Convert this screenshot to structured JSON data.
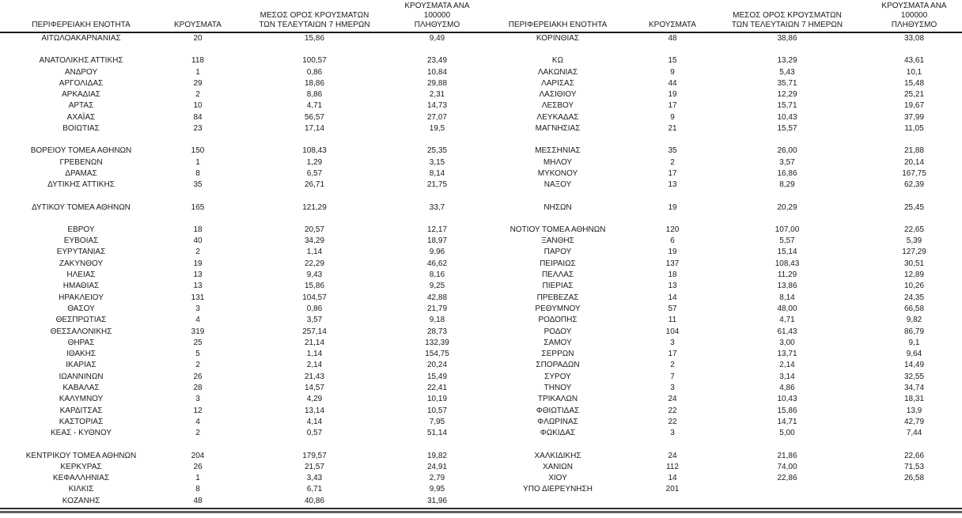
{
  "table": {
    "columns": [
      "ΠΕΡΙΦΕΡΕΙΑΚΗ ΕΝΟΤΗΤΑ",
      "ΚΡΟΥΣΜΑΤΑ",
      "ΜΕΣΟΣ ΟΡΟΣ ΚΡΟΥΣΜΑΤΩΝ\nΤΩΝ ΤΕΛΕΥΤΑΙΩΝ 7 ΗΜΕΡΩΝ",
      "ΚΡΟΥΣΜΑΤΑ ΑΝΑ 100000\nΠΛΗΘΥΣΜΟ",
      "ΠΕΡΙΦΕΡΕΙΑΚΗ ΕΝΟΤΗΤΑ",
      "ΚΡΟΥΣΜΑΤΑ",
      "ΜΕΣΟΣ ΟΡΟΣ ΚΡΟΥΣΜΑΤΩΝ\nΤΩΝ ΤΕΛΕΥΤΑΙΩΝ 7 ΗΜΕΡΩΝ",
      "ΚΡΟΥΣΜΑΤΑ ΑΝΑ 100000\nΠΛΗΘΥΣΜΟ"
    ],
    "rows": [
      [
        "ΑΙΤΩΛΟΑΚΑΡΝΑΝΙΑΣ",
        "20",
        "15,86",
        "9,49",
        "ΚΟΡΙΝΘΙΑΣ",
        "48",
        "38,86",
        "33,08"
      ],
      [
        "",
        "",
        "",
        "",
        "",
        "",
        "",
        ""
      ],
      [
        "ΑΝΑΤΟΛΙΚΗΣ ΑΤΤΙΚΗΣ",
        "118",
        "100,57",
        "23,49",
        "ΚΩ",
        "15",
        "13,29",
        "43,61"
      ],
      [
        "ΑΝΔΡΟΥ",
        "1",
        "0,86",
        "10,84",
        "ΛΑΚΩΝΙΑΣ",
        "9",
        "5,43",
        "10,1"
      ],
      [
        "ΑΡΓΟΛΙΔΑΣ",
        "29",
        "18,86",
        "29,88",
        "ΛΑΡΙΣΑΣ",
        "44",
        "35,71",
        "15,48"
      ],
      [
        "ΑΡΚΑΔΙΑΣ",
        "2",
        "8,86",
        "2,31",
        "ΛΑΣΙΘΙΟΥ",
        "19",
        "12,29",
        "25,21"
      ],
      [
        "ΑΡΤΑΣ",
        "10",
        "4,71",
        "14,73",
        "ΛΕΣΒΟΥ",
        "17",
        "15,71",
        "19,67"
      ],
      [
        "ΑΧΑΪΑΣ",
        "84",
        "56,57",
        "27,07",
        "ΛΕΥΚΑΔΑΣ",
        "9",
        "10,43",
        "37,99"
      ],
      [
        "ΒΟΙΩΤΙΑΣ",
        "23",
        "17,14",
        "19,5",
        "ΜΑΓΝΗΣΙΑΣ",
        "21",
        "15,57",
        "11,05"
      ],
      [
        "",
        "",
        "",
        "",
        "",
        "",
        "",
        ""
      ],
      [
        "ΒΟΡΕΙΟΥ ΤΟΜΕΑ ΑΘΗΝΩΝ",
        "150",
        "108,43",
        "25,35",
        "ΜΕΣΣΗΝΙΑΣ",
        "35",
        "26,00",
        "21,88"
      ],
      [
        "ΓΡΕΒΕΝΩΝ",
        "1",
        "1,29",
        "3,15",
        "ΜΗΛΟΥ",
        "2",
        "3,57",
        "20,14"
      ],
      [
        "ΔΡΑΜΑΣ",
        "8",
        "6,57",
        "8,14",
        "ΜΥΚΟΝΟΥ",
        "17",
        "16,86",
        "167,75"
      ],
      [
        "ΔΥΤΙΚΗΣ ΑΤΤΙΚΗΣ",
        "35",
        "26,71",
        "21,75",
        "ΝΑΞΟΥ",
        "13",
        "8,29",
        "62,39"
      ],
      [
        "",
        "",
        "",
        "",
        "",
        "",
        "",
        ""
      ],
      [
        "ΔΥΤΙΚΟΥ ΤΟΜΕΑ ΑΘΗΝΩΝ",
        "165",
        "121,29",
        "33,7",
        "ΝΗΣΩΝ",
        "19",
        "20,29",
        "25,45"
      ],
      [
        "",
        "",
        "",
        "",
        "",
        "",
        "",
        ""
      ],
      [
        "ΕΒΡΟΥ",
        "18",
        "20,57",
        "12,17",
        "ΝΟΤΙΟΥ ΤΟΜΕΑ ΑΘΗΝΩΝ",
        "120",
        "107,00",
        "22,65"
      ],
      [
        "ΕΥΒΟΙΑΣ",
        "40",
        "34,29",
        "18,97",
        "ΞΑΝΘΗΣ",
        "6",
        "5,57",
        "5,39"
      ],
      [
        "ΕΥΡΥΤΑΝΙΑΣ",
        "2",
        "1,14",
        "9,96",
        "ΠΑΡΟΥ",
        "19",
        "15,14",
        "127,29"
      ],
      [
        "ΖΑΚΥΝΘΟΥ",
        "19",
        "22,29",
        "46,62",
        "ΠΕΙΡΑΙΩΣ",
        "137",
        "108,43",
        "30,51"
      ],
      [
        "ΗΛΕΙΑΣ",
        "13",
        "9,43",
        "8,16",
        "ΠΕΛΛΑΣ",
        "18",
        "11,29",
        "12,89"
      ],
      [
        "ΗΜΑΘΙΑΣ",
        "13",
        "15,86",
        "9,25",
        "ΠΙΕΡΙΑΣ",
        "13",
        "13,86",
        "10,26"
      ],
      [
        "ΗΡΑΚΛΕΙΟΥ",
        "131",
        "104,57",
        "42,88",
        "ΠΡΕΒΕΖΑΣ",
        "14",
        "8,14",
        "24,35"
      ],
      [
        "ΘΑΣΟΥ",
        "3",
        "0,86",
        "21,79",
        "ΡΕΘΥΜΝΟΥ",
        "57",
        "48,00",
        "66,58"
      ],
      [
        "ΘΕΣΠΡΩΤΙΑΣ",
        "4",
        "3,57",
        "9,18",
        "ΡΟΔΟΠΗΣ",
        "11",
        "4,71",
        "9,82"
      ],
      [
        "ΘΕΣΣΑΛΟΝΙΚΗΣ",
        "319",
        "257,14",
        "28,73",
        "ΡΟΔΟΥ",
        "104",
        "61,43",
        "86,79"
      ],
      [
        "ΘΗΡΑΣ",
        "25",
        "21,14",
        "132,39",
        "ΣΑΜΟΥ",
        "3",
        "3,00",
        "9,1"
      ],
      [
        "ΙΘΑΚΗΣ",
        "5",
        "1,14",
        "154,75",
        "ΣΕΡΡΩΝ",
        "17",
        "13,71",
        "9,64"
      ],
      [
        "ΙΚΑΡΙΑΣ",
        "2",
        "2,14",
        "20,24",
        "ΣΠΟΡΑΔΩΝ",
        "2",
        "2,14",
        "14,49"
      ],
      [
        "ΙΩΑΝΝΙΝΩΝ",
        "26",
        "21,43",
        "15,49",
        "ΣΥΡΟΥ",
        "7",
        "3,14",
        "32,55"
      ],
      [
        "ΚΑΒΑΛΑΣ",
        "28",
        "14,57",
        "22,41",
        "ΤΗΝΟΥ",
        "3",
        "4,86",
        "34,74"
      ],
      [
        "ΚΑΛΥΜΝΟΥ",
        "3",
        "4,29",
        "10,19",
        "ΤΡΙΚΑΛΩΝ",
        "24",
        "10,43",
        "18,31"
      ],
      [
        "ΚΑΡΔΙΤΣΑΣ",
        "12",
        "13,14",
        "10,57",
        "ΦΘΙΩΤΙΔΑΣ",
        "22",
        "15,86",
        "13,9"
      ],
      [
        "ΚΑΣΤΟΡΙΑΣ",
        "4",
        "4,14",
        "7,95",
        "ΦΛΩΡΙΝΑΣ",
        "22",
        "14,71",
        "42,79"
      ],
      [
        "ΚΕΑΣ - ΚΥΘΝΟΥ",
        "2",
        "0,57",
        "51,14",
        "ΦΩΚΙΔΑΣ",
        "3",
        "5,00",
        "7,44"
      ],
      [
        "",
        "",
        "",
        "",
        "",
        "",
        "",
        ""
      ],
      [
        "ΚΕΝΤΡΙΚΟΥ ΤΟΜΕΑ ΑΘΗΝΩΝ",
        "204",
        "179,57",
        "19,82",
        "ΧΑΛΚΙΔΙΚΗΣ",
        "24",
        "21,86",
        "22,66"
      ],
      [
        "ΚΕΡΚΥΡΑΣ",
        "26",
        "21,57",
        "24,91",
        "ΧΑΝΙΩΝ",
        "112",
        "74,00",
        "71,53"
      ],
      [
        "ΚΕΦΑΛΛΗΝΙΑΣ",
        "1",
        "3,43",
        "2,79",
        "ΧΙΟΥ",
        "14",
        "22,86",
        "26,58"
      ],
      [
        "ΚΙΛΚΙΣ",
        "8",
        "6,71",
        "9,95",
        "ΥΠΟ ΔΙΕΡΕΥΝΗΣΗ",
        "201",
        "",
        ""
      ],
      [
        "ΚΟΖΑΝΗΣ",
        "48",
        "40,86",
        "31,96",
        "",
        "",
        "",
        ""
      ]
    ]
  }
}
